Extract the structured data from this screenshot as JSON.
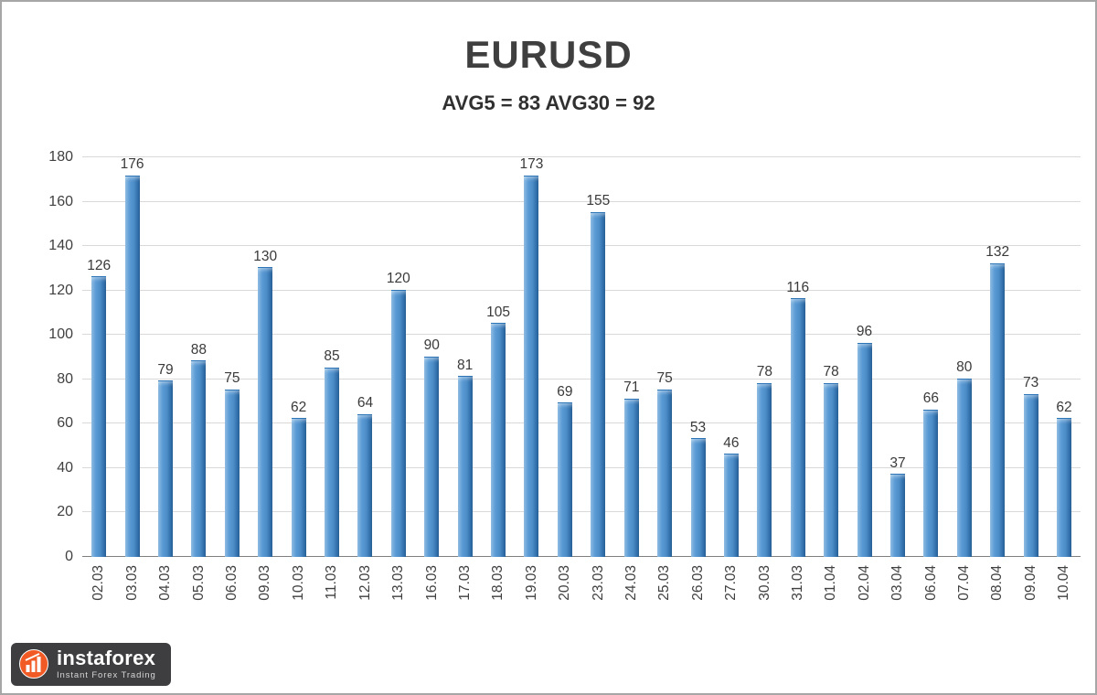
{
  "chart_data": {
    "type": "bar",
    "title": "EURUSD",
    "subtitle": "AVG5 = 83 AVG30 = 92",
    "categories": [
      "02.03",
      "03.03",
      "04.03",
      "05.03",
      "06.03",
      "09.03",
      "10.03",
      "11.03",
      "12.03",
      "13.03",
      "16.03",
      "17.03",
      "18.03",
      "19.03",
      "20.03",
      "23.03",
      "24.03",
      "25.03",
      "26.03",
      "27.03",
      "30.03",
      "31.03",
      "01.04",
      "02.04",
      "03.04",
      "06.04",
      "07.04",
      "08.04",
      "09.04",
      "10.04"
    ],
    "values": [
      126,
      176,
      79,
      88,
      75,
      130,
      62,
      85,
      64,
      120,
      90,
      81,
      105,
      173,
      69,
      155,
      71,
      75,
      53,
      46,
      78,
      116,
      78,
      96,
      37,
      66,
      80,
      132,
      73,
      62
    ],
    "ylim": [
      0,
      180
    ],
    "ytick_step": 20,
    "grid": "horizontal",
    "legend": "none",
    "bar_color": "#5b9bd5",
    "bar_color_dark": "#2f6da8",
    "bar_color_light": "#8fbce2",
    "label_color": "#404040",
    "gridline_color": "#d9d9d9",
    "axis_color": "#7f7f7f"
  },
  "watermark": {
    "brand": "instaforex",
    "tagline": "Instant Forex Trading",
    "logo_color": "#f15a24",
    "background_color": "#3e3e41"
  }
}
